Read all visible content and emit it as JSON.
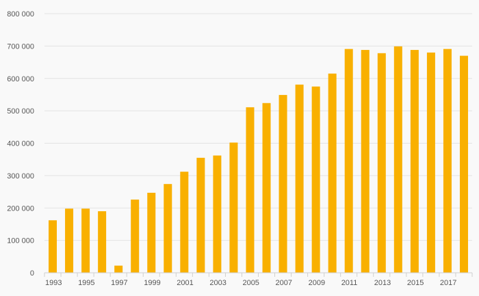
{
  "chart_data": {
    "type": "bar",
    "title": "",
    "xlabel": "",
    "ylabel": "",
    "ylim": [
      0,
      800000
    ],
    "yticks": [
      0,
      100000,
      200000,
      300000,
      400000,
      500000,
      600000,
      700000,
      800000
    ],
    "ytick_labels": [
      "0",
      "100 000",
      "200 000",
      "300 000",
      "400 000",
      "500 000",
      "600 000",
      "700 000",
      "800 000"
    ],
    "grid": true,
    "bar_color": "#f9b000",
    "categories": [
      "1993",
      "1994",
      "1995",
      "1996",
      "1997",
      "1998",
      "1999",
      "2000",
      "2001",
      "2002",
      "2003",
      "2004",
      "2005",
      "2006",
      "2007",
      "2008",
      "2009",
      "2010",
      "2011",
      "2012",
      "2013",
      "2014",
      "2015",
      "2016",
      "2017",
      "2018"
    ],
    "xtick_labels": [
      "1993",
      "1995",
      "1997",
      "1999",
      "2001",
      "2003",
      "2005",
      "2007",
      "2009",
      "2011",
      "2013",
      "2015",
      "2017"
    ],
    "values": [
      162000,
      198000,
      198000,
      190000,
      22000,
      226000,
      247000,
      274000,
      312000,
      355000,
      362000,
      402000,
      511000,
      524000,
      549000,
      581000,
      575000,
      615000,
      691000,
      688000,
      678000,
      699000,
      688000,
      680000,
      691000,
      670000
    ]
  }
}
